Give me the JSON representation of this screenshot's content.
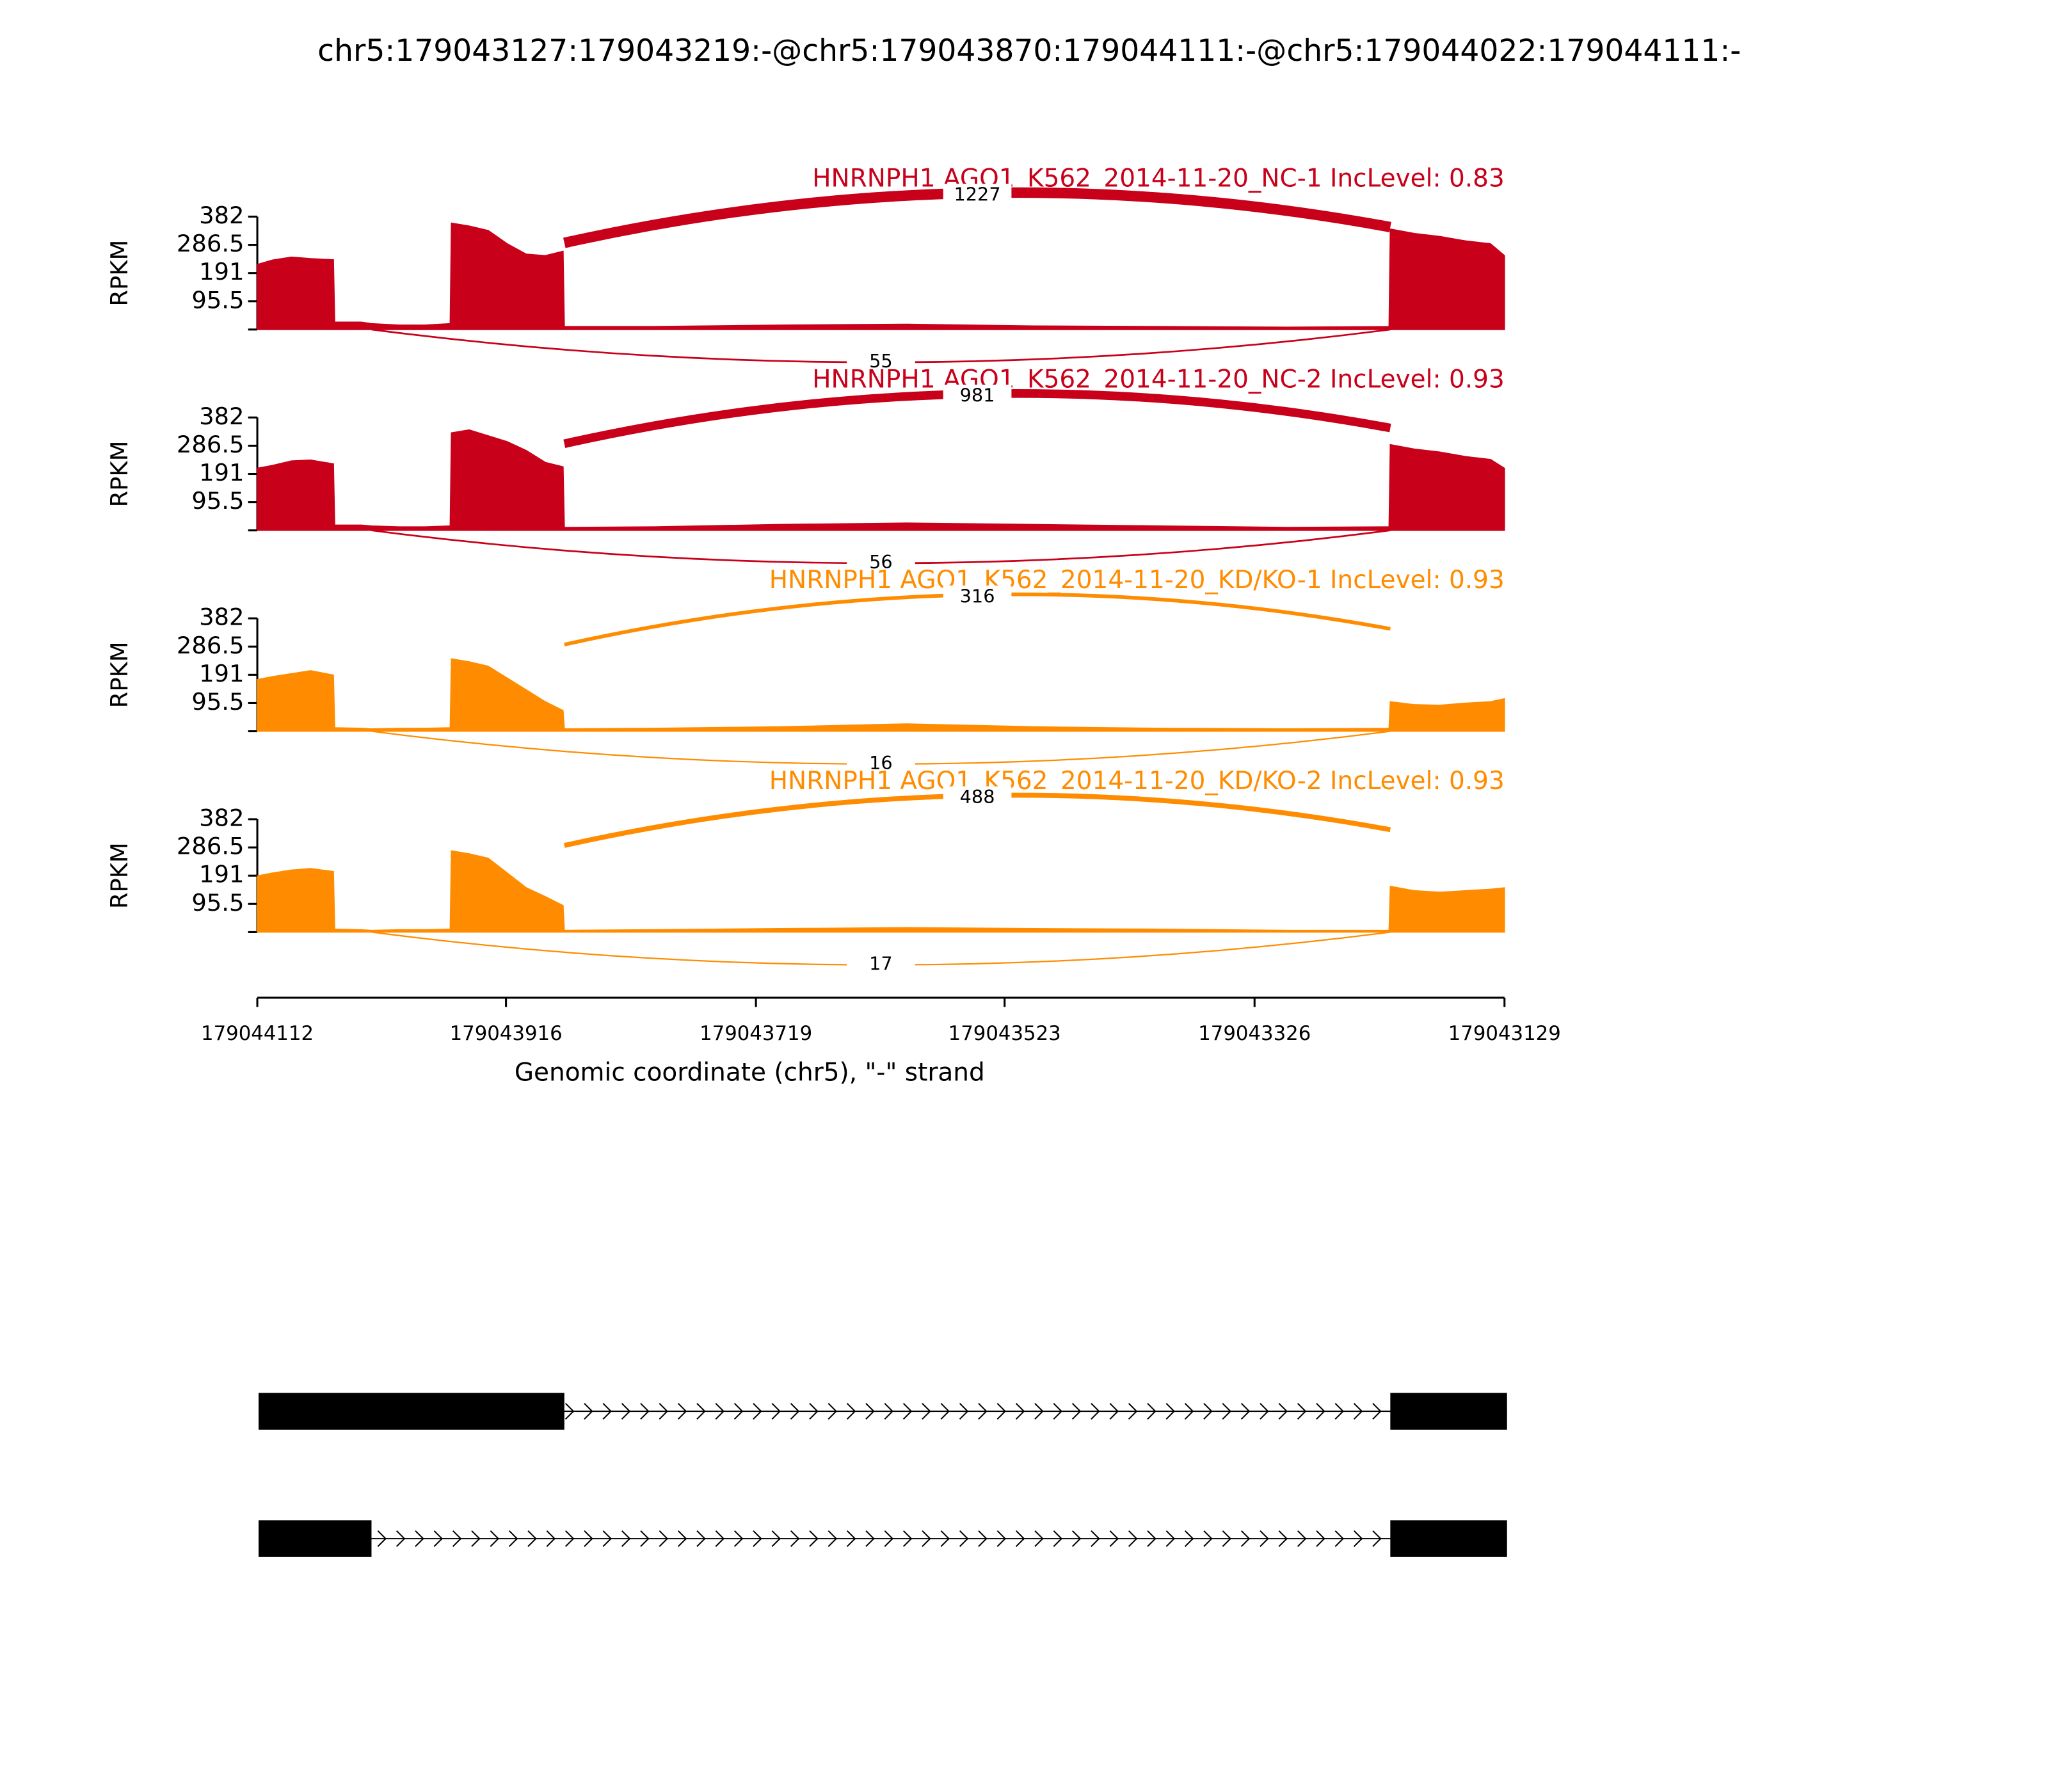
{
  "title": "chr5:179043127:179043219:-@chr5:179043870:179044111:-@chr5:179044022:179044111:-",
  "chart_data": [
    {
      "type": "area",
      "title": "HNRNPH1 AGO1_K562_2014-11-20_NC-1 IncLevel: 0.83",
      "color": "#c8001a",
      "ylabel": "RPKM",
      "ylim": [
        0,
        382
      ],
      "yticks": [
        95.5,
        191,
        286.5,
        382
      ],
      "xlim": [
        179044112,
        179043129
      ],
      "x": [
        179044112,
        179044100,
        179044085,
        179044070,
        179044052,
        179044051,
        179044030,
        179044022,
        179044000,
        179043980,
        179043960,
        179043959,
        179043945,
        179043930,
        179043915,
        179043900,
        179043885,
        179043871,
        179043870,
        179043800,
        179043700,
        179043600,
        179043500,
        179043400,
        179043300,
        179043220,
        179043219,
        179043200,
        179043180,
        179043160,
        179043140,
        179043129
      ],
      "values": [
        220,
        235,
        245,
        240,
        236,
        25,
        25,
        20,
        15,
        15,
        20,
        360,
        350,
        335,
        290,
        255,
        250,
        265,
        10,
        10,
        15,
        18,
        12,
        10,
        8,
        10,
        340,
        325,
        315,
        300,
        290,
        250
      ],
      "junctions": [
        {
          "start": 179043870,
          "end": 179043219,
          "count": 1227
        },
        {
          "start": 179044022,
          "end": 179043219,
          "count": 55
        }
      ]
    },
    {
      "type": "area",
      "title": "HNRNPH1 AGO1_K562_2014-11-20_NC-2 IncLevel: 0.93",
      "color": "#c8001a",
      "ylabel": "RPKM",
      "ylim": [
        0,
        382
      ],
      "yticks": [
        95.5,
        191,
        286.5,
        382
      ],
      "xlim": [
        179044112,
        179043129
      ],
      "x": [
        179044112,
        179044100,
        179044085,
        179044070,
        179044052,
        179044051,
        179044030,
        179044022,
        179044000,
        179043980,
        179043960,
        179043959,
        179043945,
        179043930,
        179043915,
        179043900,
        179043885,
        179043871,
        179043870,
        179043800,
        179043700,
        179043600,
        179043500,
        179043400,
        179043300,
        179043220,
        179043219,
        179043200,
        179043180,
        179043160,
        179043140,
        179043129
      ],
      "values": [
        210,
        220,
        235,
        238,
        225,
        18,
        18,
        15,
        12,
        12,
        15,
        330,
        340,
        320,
        300,
        270,
        230,
        215,
        10,
        12,
        20,
        25,
        20,
        15,
        10,
        12,
        290,
        275,
        265,
        250,
        240,
        210
      ],
      "junctions": [
        {
          "start": 179043870,
          "end": 179043219,
          "count": 981
        },
        {
          "start": 179044022,
          "end": 179043219,
          "count": 56
        }
      ]
    },
    {
      "type": "area",
      "title": "HNRNPH1 AGO1_K562_2014-11-20_KD/KO-1 IncLevel: 0.93",
      "color": "#ff8c00",
      "ylabel": "RPKM",
      "ylim": [
        0,
        382
      ],
      "yticks": [
        95.5,
        191,
        286.5,
        382
      ],
      "xlim": [
        179044112,
        179043129
      ],
      "x": [
        179044112,
        179044100,
        179044085,
        179044070,
        179044052,
        179044051,
        179044030,
        179044022,
        179044000,
        179043980,
        179043960,
        179043959,
        179043945,
        179043930,
        179043915,
        179043900,
        179043885,
        179043871,
        179043870,
        179043800,
        179043700,
        179043600,
        179043500,
        179043400,
        179043300,
        179043220,
        179043219,
        179043200,
        179043180,
        179043160,
        179043140,
        179043129
      ],
      "values": [
        175,
        185,
        195,
        205,
        190,
        12,
        10,
        8,
        10,
        10,
        12,
        245,
        235,
        220,
        180,
        140,
        100,
        70,
        8,
        10,
        15,
        25,
        15,
        10,
        8,
        10,
        100,
        90,
        88,
        95,
        100,
        110
      ],
      "junctions": [
        {
          "start": 179043870,
          "end": 179043219,
          "count": 316
        },
        {
          "start": 179044022,
          "end": 179043219,
          "count": 16
        }
      ]
    },
    {
      "type": "area",
      "title": "HNRNPH1 AGO1_K562_2014-11-20_KD/KO-2 IncLevel: 0.93",
      "color": "#ff8c00",
      "ylabel": "RPKM",
      "ylim": [
        0,
        382
      ],
      "yticks": [
        95.5,
        191,
        286.5,
        382
      ],
      "xlim": [
        179044112,
        179043129
      ],
      "xticks": [
        179044112,
        179043916,
        179043719,
        179043523,
        179043326,
        179043129
      ],
      "xlabel": "Genomic coordinate (chr5), \"-\" strand",
      "x": [
        179044112,
        179044100,
        179044085,
        179044070,
        179044052,
        179044051,
        179044030,
        179044022,
        179044000,
        179043980,
        179043960,
        179043959,
        179043945,
        179043930,
        179043915,
        179043900,
        179043885,
        179043871,
        179043870,
        179043800,
        179043700,
        179043600,
        179043500,
        179043400,
        179043300,
        179043220,
        179043219,
        179043200,
        179043180,
        179043160,
        179043140,
        179043129
      ],
      "values": [
        190,
        200,
        210,
        215,
        205,
        10,
        8,
        6,
        8,
        8,
        10,
        275,
        265,
        250,
        200,
        150,
        120,
        90,
        6,
        8,
        12,
        15,
        12,
        10,
        6,
        6,
        155,
        140,
        135,
        140,
        145,
        150
      ],
      "junctions": [
        {
          "start": 179043870,
          "end": 179043219,
          "count": 488
        },
        {
          "start": 179044022,
          "end": 179043219,
          "count": 17
        }
      ]
    },
    {
      "type": "gene_model",
      "color": "#000000",
      "xlim": [
        179044112,
        179043129
      ],
      "transcripts": [
        {
          "exons": [
            [
              179044111,
              179043870
            ],
            [
              179043219,
              179043127
            ]
          ]
        },
        {
          "exons": [
            [
              179044111,
              179044022
            ],
            [
              179043219,
              179043127
            ]
          ]
        }
      ]
    }
  ]
}
